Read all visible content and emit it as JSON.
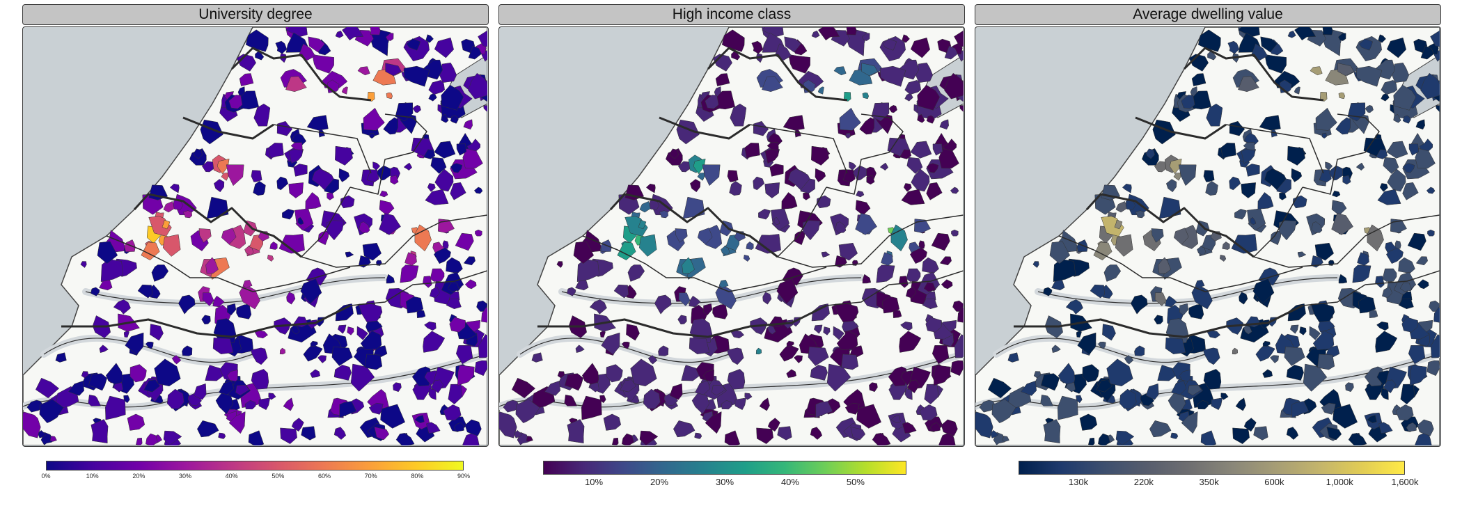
{
  "panels": [
    {
      "title": "University degree",
      "palette": "plasma",
      "colors": [
        "#0d0887",
        "#46039f",
        "#7201a8",
        "#9c179e",
        "#bd3786",
        "#d8576b",
        "#ed7953",
        "#fb9f3a",
        "#fdca26",
        "#f0f921"
      ],
      "ticks": [
        "0%",
        "10%",
        "20%",
        "30%",
        "40%",
        "50%",
        "60%",
        "70%",
        "80%",
        "90%"
      ]
    },
    {
      "title": "High income class",
      "palette": "viridis",
      "colors": [
        "#440154",
        "#482878",
        "#3e4989",
        "#31688e",
        "#26828e",
        "#1f9e89",
        "#35b779",
        "#6ece58",
        "#b5de2b",
        "#fde725"
      ],
      "ticks": [
        "10%",
        "20%",
        "30%",
        "40%",
        "50%"
      ]
    },
    {
      "title": "Average dwelling value",
      "palette": "cividis",
      "colors": [
        "#00204d",
        "#1f3a6d",
        "#3d4f6e",
        "#575d6d",
        "#6f6f71",
        "#8a8779",
        "#a69d75",
        "#c3b46c",
        "#e1cc55",
        "#ffea46"
      ],
      "ticks": [
        "130k",
        "220k",
        "350k",
        "600k",
        "1,000k",
        "1,600k"
      ]
    }
  ],
  "colors": {
    "sea": "#c9d0d4",
    "land": "#f7f8f5",
    "border": "#2b2b2b",
    "water": "#d3d8dc"
  }
}
